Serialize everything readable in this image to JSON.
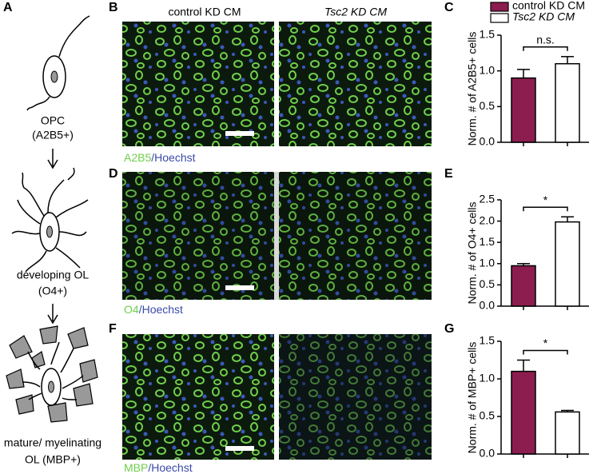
{
  "panels": [
    "A",
    "B",
    "C",
    "D",
    "E",
    "F",
    "G"
  ],
  "diagram": {
    "stages": [
      {
        "label": "OPC",
        "marker": "(A2B5+)"
      },
      {
        "label": "developing OL",
        "marker": "(O4+)"
      },
      {
        "label": "mature/ myelinating",
        "marker": "OL (MBP+)"
      }
    ]
  },
  "columns": [
    "control KD CM",
    "Tsc2 KD CM"
  ],
  "rows": [
    {
      "stain": "A2B5",
      "counterstain": "/Hoechst"
    },
    {
      "stain": "O4",
      "counterstain": "/Hoechst"
    },
    {
      "stain": "MBP",
      "counterstain": "/Hoechst"
    }
  ],
  "legend": [
    {
      "name": "control KD CM",
      "color": "#8c1d4f"
    },
    {
      "name": "Tsc2 KD CM",
      "color": "#ffffff"
    }
  ],
  "chart_data": [
    {
      "type": "bar",
      "ylabel": "Norm. # of A2B5+ cells",
      "categories": [
        null,
        null
      ],
      "values": [
        0.9,
        1.1
      ],
      "errors": [
        0.12,
        0.1
      ],
      "colors": [
        "#8c1d4f",
        "#ffffff"
      ],
      "annotation": "n.s.",
      "ylim": [
        0,
        1.5
      ],
      "yticks": [
        {
          "value": 0,
          "label": "0.0"
        },
        {
          "value": 0.5,
          "label": "0.5"
        },
        {
          "value": 1,
          "label": "1.0"
        },
        {
          "value": 1.5,
          "label": "1.5"
        }
      ]
    },
    {
      "type": "bar",
      "ylabel": "Norm. # of O4+ cells",
      "categories": [
        null,
        null
      ],
      "values": [
        0.95,
        1.98
      ],
      "errors": [
        0.05,
        0.12
      ],
      "colors": [
        "#8c1d4f",
        "#ffffff"
      ],
      "annotation": "*",
      "ylim": [
        0,
        2.5
      ],
      "yticks": [
        {
          "value": 0,
          "label": "0.0"
        },
        {
          "value": 0.5,
          "label": "0.5"
        },
        {
          "value": 1,
          "label": "1.0"
        },
        {
          "value": 1.5,
          "label": "1.5"
        },
        {
          "value": 2,
          "label": "2.0"
        },
        {
          "value": 2.5,
          "label": "2.5"
        }
      ]
    },
    {
      "type": "bar",
      "ylabel": "Norm. # of MBP+ cells",
      "categories": [
        null,
        null
      ],
      "values": [
        1.1,
        0.56
      ],
      "errors": [
        0.15,
        0.02
      ],
      "colors": [
        "#8c1d4f",
        "#ffffff"
      ],
      "annotation": "*",
      "ylim": [
        0,
        1.5
      ],
      "yticks": [
        {
          "value": 0,
          "label": "0.0"
        },
        {
          "value": 0.5,
          "label": "0.5"
        },
        {
          "value": 1,
          "label": "1.0"
        },
        {
          "value": 1.5,
          "label": "1.5"
        }
      ]
    }
  ]
}
